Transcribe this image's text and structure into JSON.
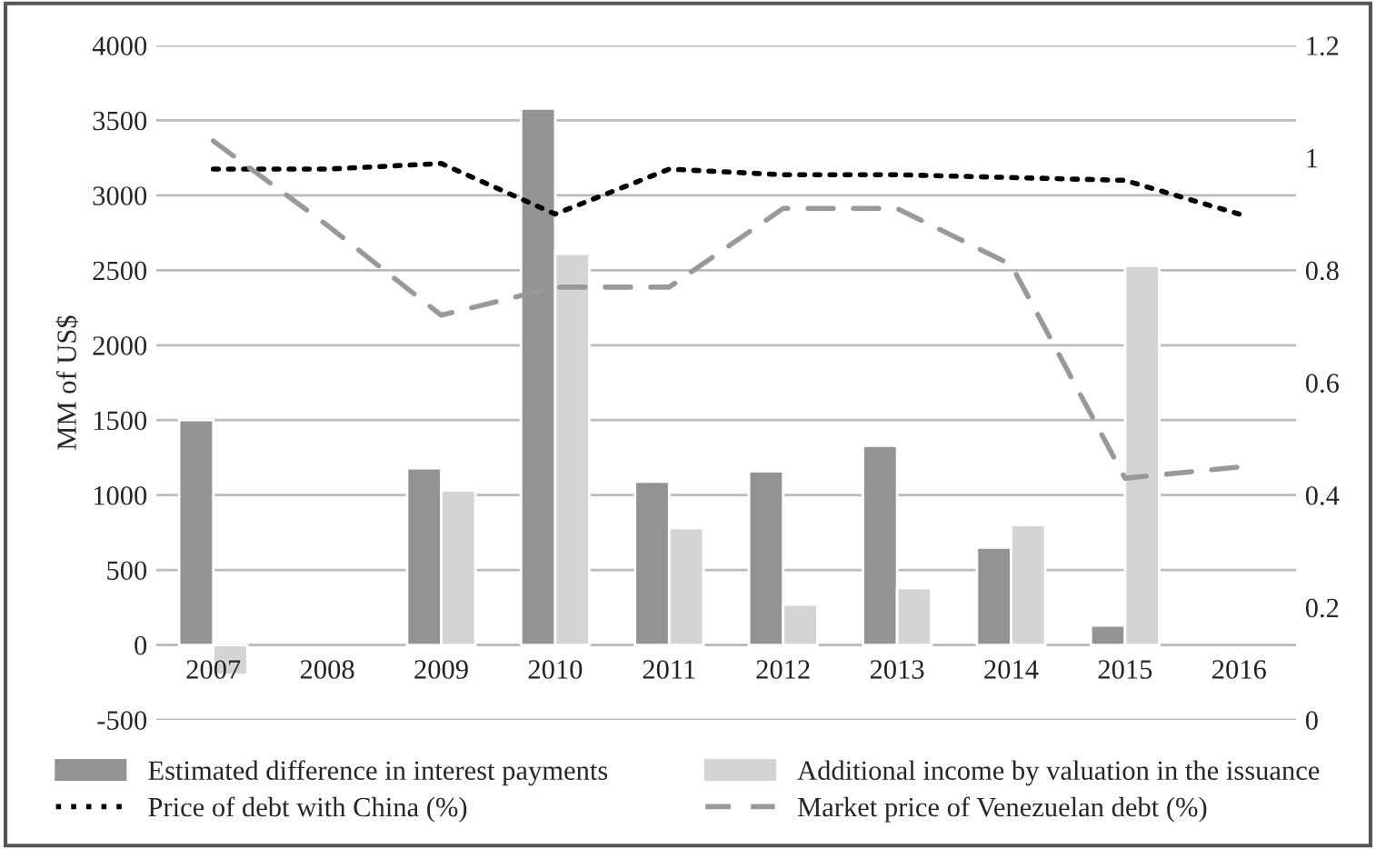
{
  "chart_data": {
    "type": "bar",
    "ylabel": "MM of US$",
    "categories": [
      "2007",
      "2008",
      "2009",
      "2010",
      "2011",
      "2012",
      "2013",
      "2014",
      "2015",
      "2016"
    ],
    "series": [
      {
        "name": "Estimated difference in interest payments",
        "color": "#939393",
        "values": [
          1500,
          null,
          1180,
          3580,
          1090,
          1160,
          1330,
          650,
          130,
          null
        ]
      },
      {
        "name": "Additional income by valuation in the issuance",
        "color": "#d4d4d4",
        "values": [
          -200,
          null,
          1030,
          2610,
          780,
          270,
          380,
          800,
          2530,
          null
        ]
      },
      {
        "name": "Price of debt with China (%)",
        "type": "line",
        "axis": "y2",
        "line_style": "dotted",
        "color": "#000000",
        "values": [
          0.98,
          0.98,
          0.99,
          0.9,
          0.98,
          0.97,
          0.97,
          0.965,
          0.96,
          0.9
        ]
      },
      {
        "name": "Market price of Venezuelan debt (%)",
        "type": "line",
        "axis": "y2",
        "line_style": "dashed",
        "color": "#999999",
        "values": [
          1.03,
          0.88,
          0.72,
          0.77,
          0.77,
          0.91,
          0.91,
          0.81,
          0.43,
          0.45
        ]
      }
    ],
    "ylim": [
      -500,
      4000
    ],
    "yticks": [
      -500,
      0,
      500,
      1000,
      1500,
      2000,
      2500,
      3000,
      3500,
      4000
    ],
    "y2lim": [
      0,
      1.2
    ],
    "y2ticks": [
      0,
      0.2,
      0.4,
      0.6,
      0.8,
      1,
      1.2
    ],
    "grid": "y",
    "legend": "bottom",
    "marker": "none"
  }
}
